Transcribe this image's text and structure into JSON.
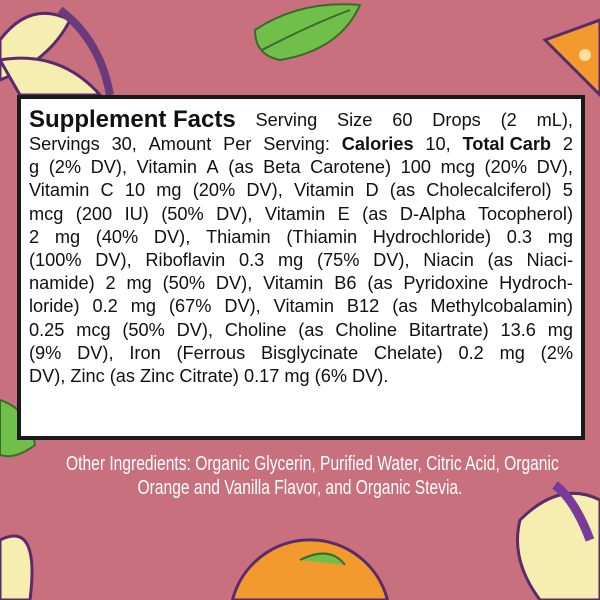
{
  "facts": {
    "title": "Supplement Facts",
    "lines": [
      "Serving Size 60 Drops (2 mL),",
      [
        "Servings 30,  Amount Per Serving: ",
        "Calories",
        " 10, ",
        "Total Carb",
        " 2"
      ],
      "g (2% DV), Vitamin A (as Beta Carotene) 100 mcg (20% DV),",
      "Vitamin C 10 mg (20% DV), Vitamin D (as Cholecalciferol) 5",
      "mcg (200 IU) (50% DV), Vitamin E (as D-Alpha Tocopherol)",
      "2 mg (40% DV), Thiamin (Thiamin Hydrochloride) 0.3 mg",
      "(100% DV), Riboflavin 0.3 mg (75% DV), Niacin (as Niaci-",
      "namide) 2 mg (50% DV), Vitamin B6 (as Pyridoxine Hydroch-",
      "loride) 0.2 mg (67% DV), Vitamin B12 (as Methylcobalamin)",
      "0.25 mcg (50% DV), Choline (as Choline Bitartrate) 13.6 mg",
      "(9% DV), Iron (Ferrous Bisglycinate Chelate) 0.2 mg (2%",
      "DV), Zinc (as Zinc Citrate) 0.17 mg (6% DV)."
    ]
  },
  "other_ingredients": [
    "Other Ingredients: Organic Glycerin, Purified Water, Citric Acid, Organic",
    "Orange and Vanilla Flavor, and Organic Stevia."
  ],
  "colors": {
    "background": "#c8707e",
    "leaf": "#5fae3e",
    "flower": "#f6eeb0",
    "orange": "#f29a2e",
    "outline": "#5a2a6a"
  }
}
